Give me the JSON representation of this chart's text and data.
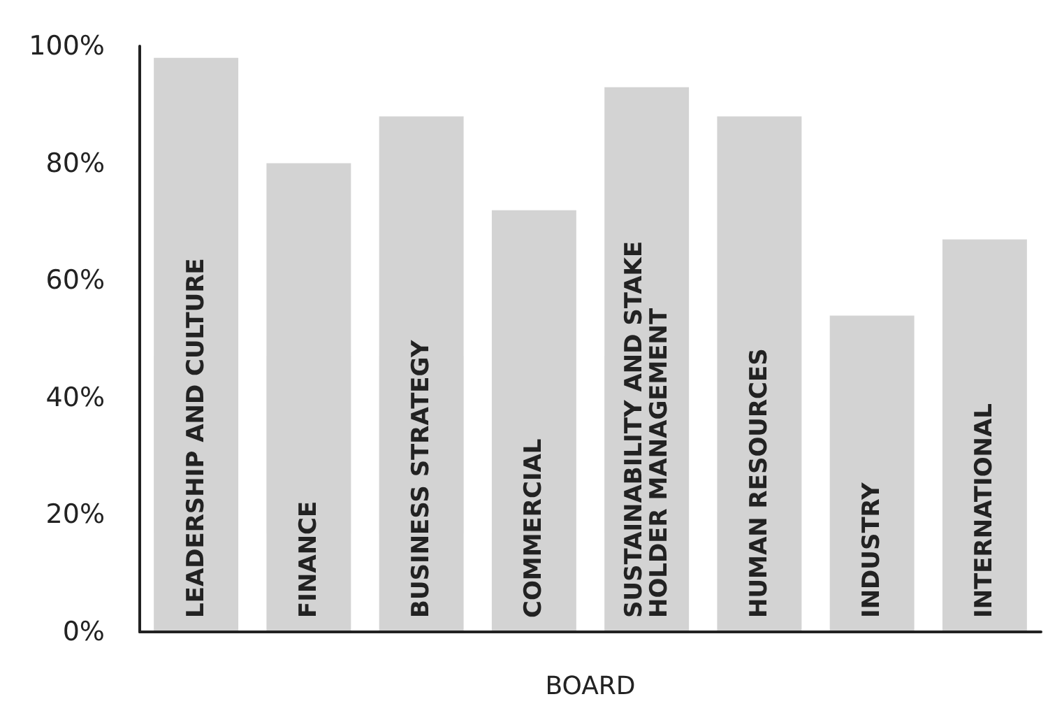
{
  "chart_data": {
    "type": "bar",
    "xlabel": "BOARD",
    "categories": [
      "LEADERSHIP AND CULTURE",
      "FINANCE",
      "BUSINESS STRATEGY",
      "COMMERCIAL",
      "SUSTAINABILITY AND STAKE HOLDER MANAGEMENT",
      "HUMAN RESOURCES",
      "INDUSTRY",
      "INTERNATIONAL"
    ],
    "values": [
      98,
      80,
      88,
      72,
      93,
      88,
      54,
      67
    ],
    "color": "#d3d3d3",
    "ylim": [
      0,
      100
    ],
    "yticks": [
      {
        "value": 0,
        "label": "0%"
      },
      {
        "value": 20,
        "label": "20%"
      },
      {
        "value": 40,
        "label": "40%"
      },
      {
        "value": 60,
        "label": "60%"
      },
      {
        "value": 80,
        "label": "80%"
      },
      {
        "value": 100,
        "label": "100%"
      }
    ],
    "grid": false
  }
}
